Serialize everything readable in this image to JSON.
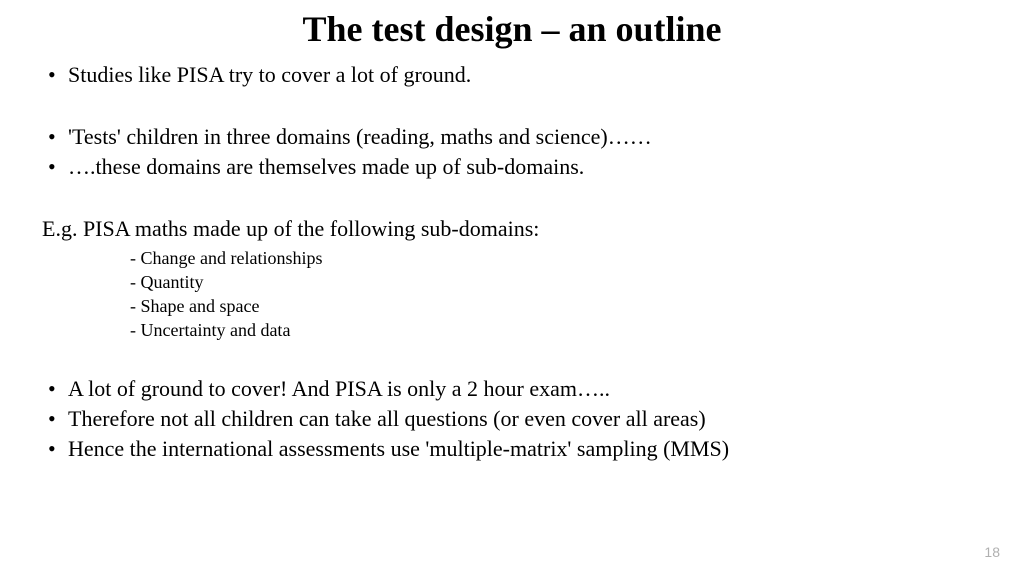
{
  "slide": {
    "title": "The test design – an outline",
    "title_fontsize": 36,
    "bullets_top": [
      "Studies like PISA try to cover a lot of ground.",
      "'Tests' children in three domains (reading, maths and science)……",
      "….these domains are themselves made up of sub-domains."
    ],
    "example_intro": "E.g. PISA maths made up of the following sub-domains:",
    "sub_domains": [
      "- Change and relationships",
      "- Quantity",
      "- Shape and space",
      "- Uncertainty and data"
    ],
    "bullets_bottom": [
      "A lot of ground to cover! And PISA is only a 2 hour exam…..",
      "Therefore not all children can take all questions (or even cover all areas)",
      "Hence the international assessments use 'multiple-matrix' sampling (MMS)"
    ],
    "body_fontsize": 22,
    "sub_fontsize": 18,
    "page_number": "18",
    "page_number_fontsize": 14,
    "background_color": "#ffffff",
    "text_color": "#000000",
    "page_number_color": "#b0b0b0"
  }
}
